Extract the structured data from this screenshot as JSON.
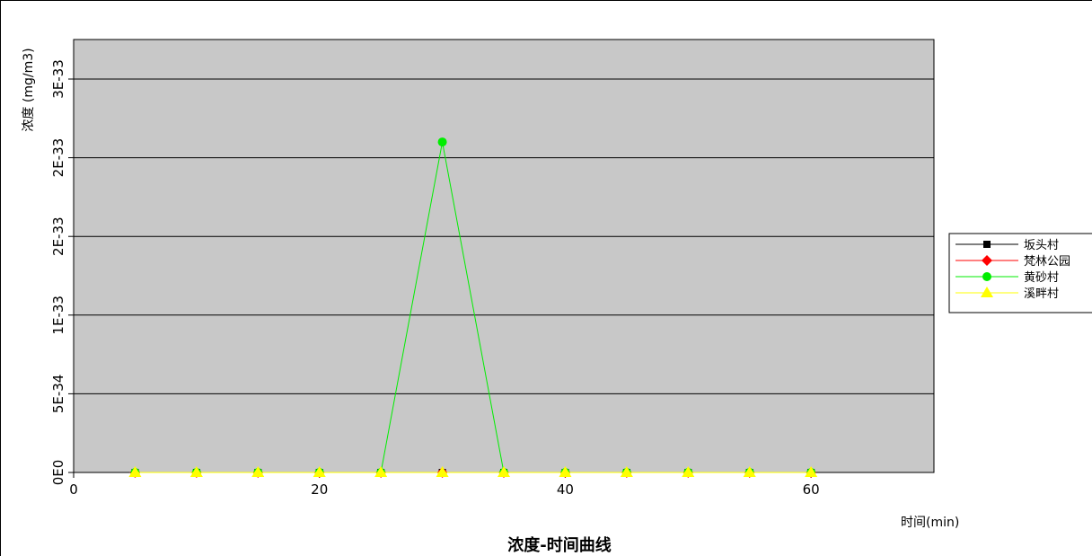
{
  "chart_data": {
    "type": "line",
    "title": "浓度-时间曲线",
    "xlabel": "时间(min)",
    "ylabel": "浓度 (mg/m3)",
    "xlim": [
      0,
      70
    ],
    "ylim": [
      0,
      2.5e-33
    ],
    "xticks": [
      0,
      20,
      40,
      60
    ],
    "xtick_labels": [
      "0",
      "20",
      "40",
      "60"
    ],
    "yticks": [
      0,
      5e-34,
      1e-33,
      1.5e-33,
      2e-33,
      2.5e-33
    ],
    "ytick_labels": [
      "0E0",
      "5E-34",
      "1E-33",
      "2E-33",
      "2E-33",
      "3E-33"
    ],
    "grid": "horizontal",
    "legend_position": "right",
    "x": [
      5,
      10,
      15,
      20,
      25,
      30,
      35,
      40,
      45,
      50,
      55,
      60
    ],
    "series": [
      {
        "name": "坂头村",
        "color": "#000000",
        "marker": "square",
        "values": [
          0,
          0,
          0,
          0,
          0,
          0,
          0,
          0,
          0,
          0,
          0,
          0
        ]
      },
      {
        "name": "梵林公园",
        "color": "#ff0000",
        "marker": "diamond",
        "values": [
          0,
          0,
          0,
          0,
          0,
          0,
          0,
          0,
          0,
          0,
          0,
          0
        ]
      },
      {
        "name": "黄砂村",
        "color": "#00ee00",
        "marker": "circle",
        "values": [
          0,
          0,
          0,
          0,
          0,
          2.1e-33,
          0,
          0,
          0,
          0,
          0,
          0
        ]
      },
      {
        "name": "溪畔村",
        "color": "#ffff00",
        "marker": "triangle",
        "values": [
          0,
          0,
          0,
          0,
          0,
          0,
          0,
          0,
          0,
          0,
          0,
          0
        ]
      }
    ]
  }
}
